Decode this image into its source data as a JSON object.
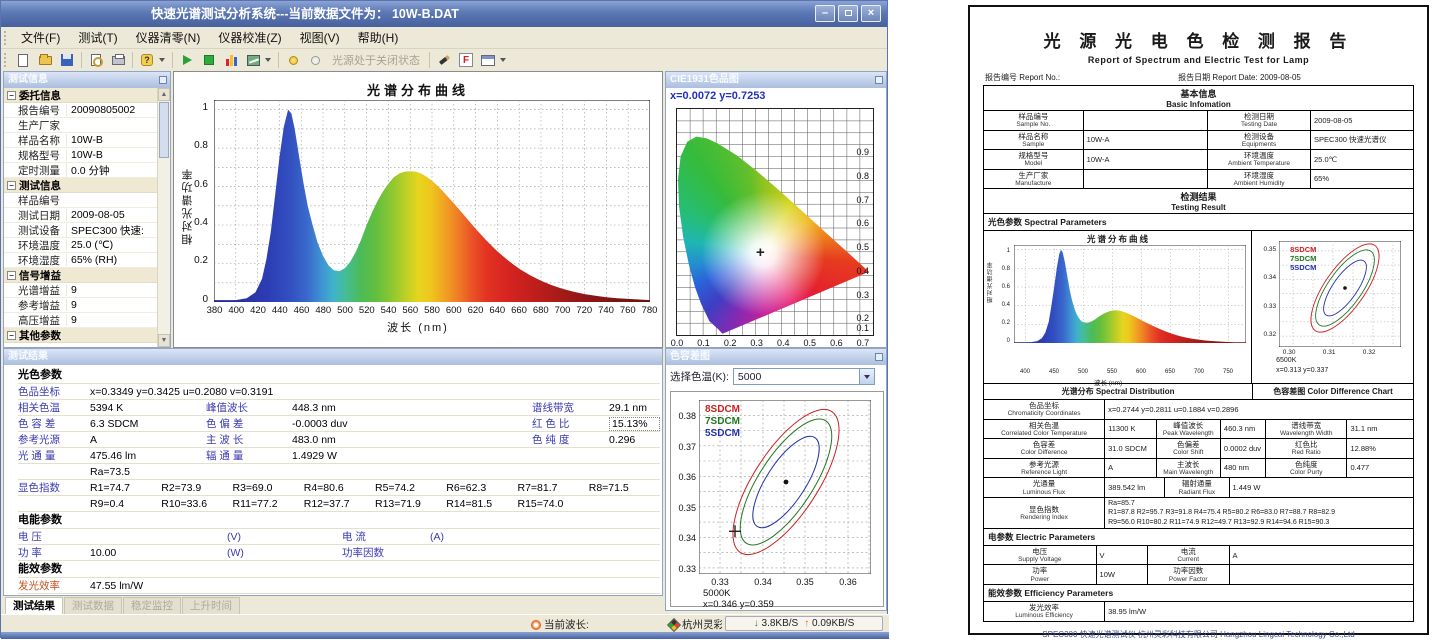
{
  "window": {
    "title": "快速光谱测试分析系统---当前数据文件为： 10W-B.DAT",
    "controls": {
      "minimize": "–",
      "close": "×"
    },
    "menu": [
      "文件(F)",
      "测试(T)",
      "仪器清零(N)",
      "仪器校准(Z)",
      "视图(V)",
      "帮助(H)"
    ],
    "toolbar": {
      "lamp_status": "光源处于关闭状态",
      "f_label": "F",
      "help_label": "?"
    },
    "statusbar": {
      "wavelength_label": "当前波长:",
      "brand": "杭州灵彩",
      "down": "3.8KB/S",
      "up": "0.09KB/S",
      "down_arrow": "↓",
      "up_arrow": "↑"
    }
  },
  "info_panel": {
    "title": "测试信息",
    "g1": "委托信息",
    "g1_rows": [
      [
        "报告编号",
        "20090805002"
      ],
      [
        "生产厂家",
        ""
      ],
      [
        "样品名称",
        "10W-B"
      ],
      [
        "规格型号",
        "10W-B"
      ],
      [
        "定时测量",
        "0.0   分钟"
      ]
    ],
    "g2": "测试信息",
    "g2_rows": [
      [
        "样品编号",
        ""
      ],
      [
        "测试日期",
        "2009-08-05"
      ],
      [
        "测试设备",
        "SPEC300 快速:"
      ],
      [
        "环境温度",
        "25.0  (℃)"
      ],
      [
        "环境湿度",
        "65%   (RH)"
      ]
    ],
    "g3": "信号增益",
    "g3_rows": [
      [
        "光谱增益",
        "9"
      ],
      [
        "参考增益",
        "9"
      ],
      [
        "高压增益",
        "9"
      ]
    ],
    "g4": "其他参数",
    "collapse_glyph": "−",
    "scroll_up": "▲",
    "scroll_down": "▼"
  },
  "spectrum": {
    "title": "光谱分布曲线",
    "ylabel": "相对光谱功率",
    "xlabel": "波长 (nm)",
    "yticks": [
      "1",
      "0.8",
      "0.6",
      "0.4",
      "0.2",
      "0"
    ],
    "xticks": [
      "380",
      "400",
      "420",
      "440",
      "460",
      "480",
      "500",
      "520",
      "540",
      "560",
      "580",
      "600",
      "620",
      "640",
      "660",
      "680",
      "700",
      "720",
      "740",
      "760",
      "780"
    ]
  },
  "cie": {
    "title": "CIE1931色品图",
    "coords": "x=0.0072   y=0.7253",
    "cross": "+",
    "yticks": [
      "0.9",
      "0.8",
      "0.7",
      "0.6",
      "0.5",
      "0.4",
      "0.3",
      "0.2",
      "0.1"
    ],
    "xticks": [
      "0.0",
      "0.1",
      "0.2",
      "0.3",
      "0.4",
      "0.5",
      "0.6",
      "0.7"
    ]
  },
  "tol": {
    "title": "色容差图",
    "select_label": "选择色温(K):",
    "select_value": "5000",
    "leg1": "8SDCM",
    "leg2": "7SDCM",
    "leg3": "5SDCM",
    "yticks": [
      "0.38",
      "0.37",
      "0.36",
      "0.35",
      "0.34",
      "0.33"
    ],
    "xticks": [
      "0.33",
      "0.34",
      "0.35",
      "0.36"
    ],
    "cct": "5000K",
    "point": "x=0.346  y=0.359",
    "cross": "+"
  },
  "results": {
    "title": "测试结果",
    "sec1": "光色参数",
    "r1l": "色品坐标",
    "r1v": "x=0.3349      y=0.3425        u=0.2080       v=0.3191",
    "rows": [
      [
        "相关色温",
        "5394 K",
        "峰值波长",
        "448.3 nm",
        "谱线带宽",
        "29.1 nm"
      ],
      [
        "色 容 差",
        "6.3  SDCM",
        "色 偏 差",
        "-0.0003  duv",
        "红 色 比",
        "15.13%"
      ],
      [
        "参考光源",
        "A",
        "主 波 长",
        "483.0 nm",
        "色 纯 度",
        "0.296"
      ],
      [
        "光 通 量",
        "475.46  lm",
        "辐 通 量",
        "1.4929 W",
        "",
        ""
      ]
    ],
    "cri_label": "显色指数",
    "ra": "Ra=73.5",
    "cri1": [
      "R1=74.7",
      "R2=73.9",
      "R3=69.0",
      "R4=80.6",
      "R5=74.2",
      "R6=62.3",
      "R7=81.7",
      "R8=71.5"
    ],
    "cri2": [
      "R9=0.4",
      "R10=33.6",
      "R11=77.2",
      "R12=37.7",
      "R13=71.9",
      "R14=81.5",
      "R15=74.0"
    ],
    "sec2": "电能参数",
    "e1": [
      "电    压",
      "",
      "(V)",
      "电    流",
      "(A)"
    ],
    "e2": [
      "功    率",
      "10.00",
      "(W)",
      "功率因数",
      ""
    ],
    "sec3": "能效参数",
    "eff_label": "发光效率",
    "eff_value": "47.55 lm/W",
    "tabs": [
      "测试结果",
      "测试数据",
      "稳定监控",
      "上升时间"
    ]
  },
  "report": {
    "title": "光 源 光 电 色 检 测 报 告",
    "subtitle": "Report  of  Spectrum  and  Electric  Test  for  Lamp",
    "report_no_label": "报告编号 Report No.:",
    "report_date_label": "报告日期 Report Date: 2009-08-05",
    "basic_cn": "基本信息",
    "basic_en": "Basic Infomation",
    "basic_rows": [
      {
        "l1cn": "样品编号",
        "l1en": "Sample No.",
        "v1": "",
        "l2cn": "检测日期",
        "l2en": "Testing Date",
        "v2": "2009-08-05"
      },
      {
        "l1cn": "样品名称",
        "l1en": "Sample",
        "v1": "10W-A",
        "l2cn": "检测设备",
        "l2en": "Equipments",
        "v2": "SPEC300 快速光谱仪"
      },
      {
        "l1cn": "规格型号",
        "l1en": "Model",
        "v1": "10W-A",
        "l2cn": "环境温度",
        "l2en": "Ambient Temperature",
        "v2": "25.0℃"
      },
      {
        "l1cn": "生产厂家",
        "l1en": "Manufacture",
        "v1": "",
        "l2cn": "环境湿度",
        "l2en": "Ambient Humidity",
        "v2": "65%"
      }
    ],
    "result_cn": "检测结果",
    "result_en": "Testing Result",
    "spectral_title": "光色参数 Spectral Parameters",
    "spectrum_chart_title": "光谱分布曲线",
    "sp_ylabel": "相对光谱功率",
    "sp_xlabel": "波长 (nm)",
    "sp_yticks": [
      "1",
      "0.8",
      "0.6",
      "0.4",
      "0.2",
      "0"
    ],
    "sp_xticks": [
      "400",
      "450",
      "500",
      "550",
      "600",
      "650",
      "700",
      "750"
    ],
    "cd_leg1": "8SDCM",
    "cd_leg2": "7SDCM",
    "cd_leg3": "5SDCM",
    "cd_yticks": [
      "0.35",
      "0.34",
      "0.33",
      "0.32"
    ],
    "cd_xticks": [
      "0.30",
      "0.31",
      "0.32"
    ],
    "cd_cct": "6500K",
    "cd_point": "x=0.313  y=0.337",
    "cap_spectrum": "光谱分布 Spectral Distribution",
    "cap_colordiff": "色容差图 Color Difference Chart",
    "p_rows": [
      {
        "lcn": "色品坐标",
        "len": "Chromaticity Coordinates",
        "v": "x=0.2744  y=0.2811  u=0.1884  v=0.2896"
      },
      {
        "l1cn": "相关色温",
        "l1en": "Correlated Color Temperature",
        "v1": "11300  K",
        "l2cn": "峰值波长",
        "l2en": "Peak Wavelength",
        "v2": "460.3 nm",
        "l3cn": "谱线带宽",
        "l3en": "Wavelength Width",
        "v3": "31.1  nm"
      },
      {
        "l1cn": "色容差",
        "l1en": "Color Difference",
        "v1": "31.0  SDCM",
        "l2cn": "色偏差",
        "l2en": "Color Shift",
        "v2": "0.0002 duv",
        "l3cn": "红色比",
        "l3en": "Red Ratio",
        "v3": "12.88%"
      },
      {
        "l1cn": "参考光源",
        "l1en": "Reference Light",
        "v1": "A",
        "l2cn": "主波长",
        "l2en": "Main Wavelength",
        "v2": "480 nm",
        "l3cn": "色纯度",
        "l3en": "Color Purty",
        "v3": "0.477"
      },
      {
        "lcn": "光通量",
        "len": "Luminous Flux",
        "v1": "389.542  lm",
        "l2cn": "辐射通量",
        "l2en": "Radiant Flux",
        "v2": "1.449  W"
      }
    ],
    "cri_lcn": "显色指数",
    "cri_len": "Rendering Index",
    "cri_ra": "Ra=85.7",
    "cri_line1": "R1=87.8  R2=95.7  R3=91.8  R4=75.4  R5=80.2  R6=83.0  R7=88.7  R8=82.9",
    "cri_line2": "R9=56.0  R10=80.2  R11=74.9  R12=49.7  R13=92.9  R14=94.6  R15=90.3",
    "electric_title": "电参数 Electric Parameters",
    "el_rows": [
      {
        "l1cn": "电压",
        "l1en": "Supply Voltage",
        "v1": "V",
        "l2cn": "电流",
        "l2en": "Current",
        "v2": "A"
      },
      {
        "l1cn": "功率",
        "l1en": "Power",
        "v1": "10W",
        "l2cn": "功率因数",
        "l2en": "Power Factor",
        "v2": ""
      }
    ],
    "eff_title": "能效参数 Efficiency Parameters",
    "eff_lcn": "发光效率",
    "eff_len": "Luminous Efficiency",
    "eff_v": "38.95  lm/W",
    "footer": "SPEC300 快速光谱测试仪  杭州灵彩科技有限公司 Hangzhou Lingcai Technology Co.,Ltd"
  },
  "colors": {
    "accent_blue": "#3b3bb0",
    "header_blue": "#5b77b4",
    "sdcm8": "#cc2222",
    "sdcm7": "#227722",
    "sdcm5": "#2233aa",
    "efficiency_label": "#c0501e"
  },
  "chart_data": [
    {
      "id": "spectrum_main",
      "type": "area",
      "title": "光谱分布曲线",
      "xlabel": "波长 (nm)",
      "ylabel": "相对光谱功率",
      "xlim": [
        380,
        780
      ],
      "ylim": [
        0,
        1.05
      ],
      "x_tick_step": 20,
      "grid": "dotted",
      "points": [
        [
          380,
          0.01
        ],
        [
          400,
          0.01
        ],
        [
          410,
          0.02
        ],
        [
          418,
          0.05
        ],
        [
          424,
          0.12
        ],
        [
          428,
          0.22
        ],
        [
          432,
          0.36
        ],
        [
          436,
          0.55
        ],
        [
          440,
          0.75
        ],
        [
          444,
          0.91
        ],
        [
          448,
          1.0
        ],
        [
          451,
          0.98
        ],
        [
          454,
          0.9
        ],
        [
          458,
          0.76
        ],
        [
          462,
          0.62
        ],
        [
          466,
          0.5
        ],
        [
          470,
          0.41
        ],
        [
          475,
          0.31
        ],
        [
          480,
          0.24
        ],
        [
          485,
          0.19
        ],
        [
          490,
          0.165
        ],
        [
          495,
          0.16
        ],
        [
          500,
          0.175
        ],
        [
          505,
          0.21
        ],
        [
          510,
          0.26
        ],
        [
          515,
          0.325
        ],
        [
          520,
          0.4
        ],
        [
          525,
          0.465
        ],
        [
          530,
          0.525
        ],
        [
          535,
          0.575
        ],
        [
          540,
          0.615
        ],
        [
          545,
          0.648
        ],
        [
          550,
          0.668
        ],
        [
          555,
          0.678
        ],
        [
          560,
          0.68
        ],
        [
          565,
          0.678
        ],
        [
          570,
          0.668
        ],
        [
          575,
          0.652
        ],
        [
          580,
          0.63
        ],
        [
          585,
          0.605
        ],
        [
          590,
          0.576
        ],
        [
          595,
          0.545
        ],
        [
          600,
          0.513
        ],
        [
          610,
          0.447
        ],
        [
          620,
          0.381
        ],
        [
          630,
          0.319
        ],
        [
          640,
          0.263
        ],
        [
          650,
          0.215
        ],
        [
          660,
          0.173
        ],
        [
          670,
          0.139
        ],
        [
          680,
          0.11
        ],
        [
          690,
          0.087
        ],
        [
          700,
          0.068
        ],
        [
          710,
          0.053
        ],
        [
          720,
          0.041
        ],
        [
          730,
          0.032
        ],
        [
          740,
          0.025
        ],
        [
          750,
          0.02
        ],
        [
          760,
          0.016
        ],
        [
          770,
          0.013
        ],
        [
          780,
          0.01
        ]
      ]
    },
    {
      "id": "cie_1931",
      "type": "scatter",
      "title": "CIE1931色品图",
      "xlim": [
        0,
        0.75
      ],
      "ylim": [
        0,
        0.95
      ],
      "cursor": [
        0.0072,
        0.7253
      ],
      "marker": [
        0.3349,
        0.3425
      ]
    },
    {
      "id": "color_tolerance_5000K",
      "type": "scatter",
      "center_cct": "5000K",
      "center": [
        0.346,
        0.359
      ],
      "cross": [
        0.3335,
        0.3425
      ],
      "ellipses_sdcm": [
        8,
        7,
        5
      ],
      "x_ticks": [
        0.33,
        0.34,
        0.35,
        0.36
      ],
      "y_ticks": [
        0.33,
        0.34,
        0.35,
        0.36,
        0.37,
        0.38
      ],
      "xlim": [
        0.325,
        0.3655
      ],
      "ylim": [
        0.3285,
        0.3855
      ],
      "grid": "dashed"
    },
    {
      "id": "spectrum_report",
      "type": "area",
      "title": "光谱分布曲线",
      "xlabel": "波长 (nm)",
      "ylabel": "相对光谱功率",
      "xlim": [
        380,
        780
      ],
      "ylim": [
        0,
        1.05
      ],
      "x_tick_step": 50,
      "points": [
        [
          380,
          0.008
        ],
        [
          410,
          0.01
        ],
        [
          420,
          0.02
        ],
        [
          428,
          0.05
        ],
        [
          434,
          0.11
        ],
        [
          440,
          0.23
        ],
        [
          445,
          0.42
        ],
        [
          450,
          0.63
        ],
        [
          454,
          0.81
        ],
        [
          458,
          0.95
        ],
        [
          461,
          1.0
        ],
        [
          464,
          0.97
        ],
        [
          468,
          0.86
        ],
        [
          472,
          0.71
        ],
        [
          476,
          0.57
        ],
        [
          480,
          0.46
        ],
        [
          484,
          0.375
        ],
        [
          488,
          0.31
        ],
        [
          492,
          0.265
        ],
        [
          496,
          0.235
        ],
        [
          500,
          0.222
        ],
        [
          505,
          0.218
        ],
        [
          510,
          0.222
        ],
        [
          515,
          0.235
        ],
        [
          520,
          0.255
        ],
        [
          525,
          0.277
        ],
        [
          530,
          0.298
        ],
        [
          535,
          0.316
        ],
        [
          540,
          0.33
        ],
        [
          545,
          0.341
        ],
        [
          550,
          0.348
        ],
        [
          555,
          0.35
        ],
        [
          560,
          0.348
        ],
        [
          565,
          0.342
        ],
        [
          570,
          0.332
        ],
        [
          575,
          0.32
        ],
        [
          580,
          0.306
        ],
        [
          585,
          0.291
        ],
        [
          590,
          0.275
        ],
        [
          600,
          0.243
        ],
        [
          610,
          0.212
        ],
        [
          620,
          0.182
        ],
        [
          630,
          0.154
        ],
        [
          640,
          0.128
        ],
        [
          650,
          0.105
        ],
        [
          660,
          0.085
        ],
        [
          670,
          0.068
        ],
        [
          680,
          0.054
        ],
        [
          690,
          0.043
        ],
        [
          700,
          0.034
        ],
        [
          710,
          0.027
        ],
        [
          720,
          0.021
        ],
        [
          730,
          0.017
        ],
        [
          740,
          0.013
        ],
        [
          750,
          0.011
        ],
        [
          760,
          0.009
        ],
        [
          770,
          0.008
        ],
        [
          780,
          0.007
        ]
      ]
    },
    {
      "id": "color_tolerance_report_6500K",
      "type": "scatter",
      "center_cct": "6500K",
      "center": [
        0.313,
        0.337
      ],
      "ellipses_sdcm": [
        8,
        7,
        5
      ],
      "x_ticks": [
        0.3,
        0.31,
        0.32
      ],
      "y_ticks": [
        0.32,
        0.33,
        0.34,
        0.35
      ],
      "grid": "dashed"
    }
  ]
}
